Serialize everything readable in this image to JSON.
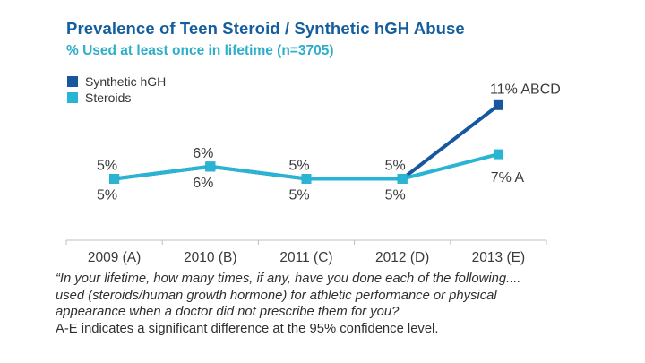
{
  "header": {
    "title": "Prevalence of Teen Steroid / Synthetic hGH Abuse",
    "title_color": "#155E9E",
    "subtitle": "% Used at least once in lifetime (n=3705)",
    "subtitle_color": "#2FAEC7"
  },
  "legend": {
    "items": [
      {
        "label": "Synthetic hGH",
        "color": "#16579E"
      },
      {
        "label": "Steroids",
        "color": "#29B4D4"
      }
    ]
  },
  "chart_data": {
    "type": "line",
    "title": "Prevalence of Teen Steroid / Synthetic hGH Abuse",
    "subtitle": "% Used at least once in lifetime (n=3705)",
    "categories": [
      "2009 (A)",
      "2010 (B)",
      "2011 (C)",
      "2012 (D)",
      "2013 (E)"
    ],
    "series": [
      {
        "name": "Synthetic hGH",
        "color": "#16579E",
        "values": [
          5,
          6,
          5,
          5,
          11
        ],
        "point_labels": [
          "5%",
          "6%",
          "5%",
          "5%",
          "11% ABCD"
        ],
        "label_side": "above"
      },
      {
        "name": "Steroids",
        "color": "#29B4D4",
        "values": [
          5,
          6,
          5,
          5,
          7
        ],
        "point_labels": [
          "5%",
          "6%",
          "5%",
          "5%",
          "7% A"
        ],
        "label_side": "below"
      }
    ],
    "xlabel": "",
    "ylabel": "",
    "ylim": [
      0,
      12
    ],
    "grid": false,
    "legend_position": "top-left",
    "marker": "square",
    "axis_color": "#BFBFBF",
    "label_color": "#3A3A3A"
  },
  "footnote": {
    "italic_lines": [
      "“In your lifetime, how many times, if any, have you done each of the following....",
      "used (steroids/human growth hormone) for athletic performance or physical",
      "appearance when a doctor did not prescribe them for you?"
    ],
    "normal_line": "A-E indicates a significant difference at the 95% confidence level."
  }
}
